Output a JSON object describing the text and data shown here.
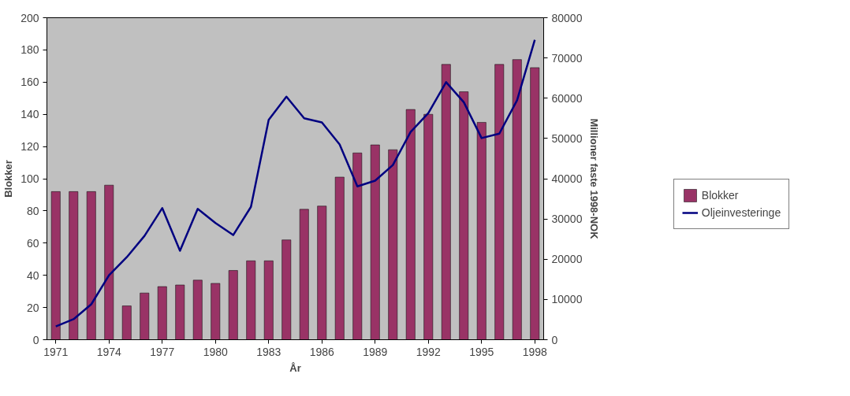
{
  "chart_data": {
    "type": "bar",
    "xlabel": "År",
    "ylabel": "Blokker",
    "y2label": "Millioner faste 1998-NOK",
    "categories": [
      "1971",
      null,
      null,
      "1974",
      null,
      null,
      "1977",
      null,
      null,
      "1980",
      null,
      null,
      "1983",
      null,
      null,
      "1986",
      null,
      null,
      "1989",
      null,
      null,
      "1992",
      null,
      null,
      "1995",
      null,
      null,
      "1998"
    ],
    "series": [
      {
        "name": "Blokker",
        "color": "#993366",
        "values": [
          92,
          92,
          92,
          96,
          21,
          29,
          33,
          34,
          37,
          35,
          43,
          49,
          49,
          62,
          81,
          83,
          101,
          116,
          121,
          118,
          143,
          140,
          171,
          154,
          135,
          171,
          174,
          169
        ]
      },
      {
        "name": "Oljeinvesteringe",
        "type": "line",
        "axis": "y2",
        "color": "#000080",
        "values": [
          3300,
          5100,
          8800,
          16000,
          20500,
          25800,
          32700,
          22100,
          32500,
          29000,
          26000,
          33000,
          54600,
          60400,
          55000,
          54000,
          48500,
          38100,
          39500,
          43400,
          51600,
          56300,
          64000,
          59000,
          50100,
          51200,
          59500,
          74500
        ]
      }
    ],
    "ylim": [
      0,
      200
    ],
    "yticks": [
      0,
      20,
      40,
      60,
      80,
      100,
      120,
      140,
      160,
      180,
      200
    ],
    "y2lim": [
      0,
      80000
    ],
    "y2ticks": [
      0,
      10000,
      20000,
      30000,
      40000,
      50000,
      60000,
      70000,
      80000
    ],
    "grid": false,
    "legend": "right",
    "marker": "none",
    "line_style": "solid"
  }
}
